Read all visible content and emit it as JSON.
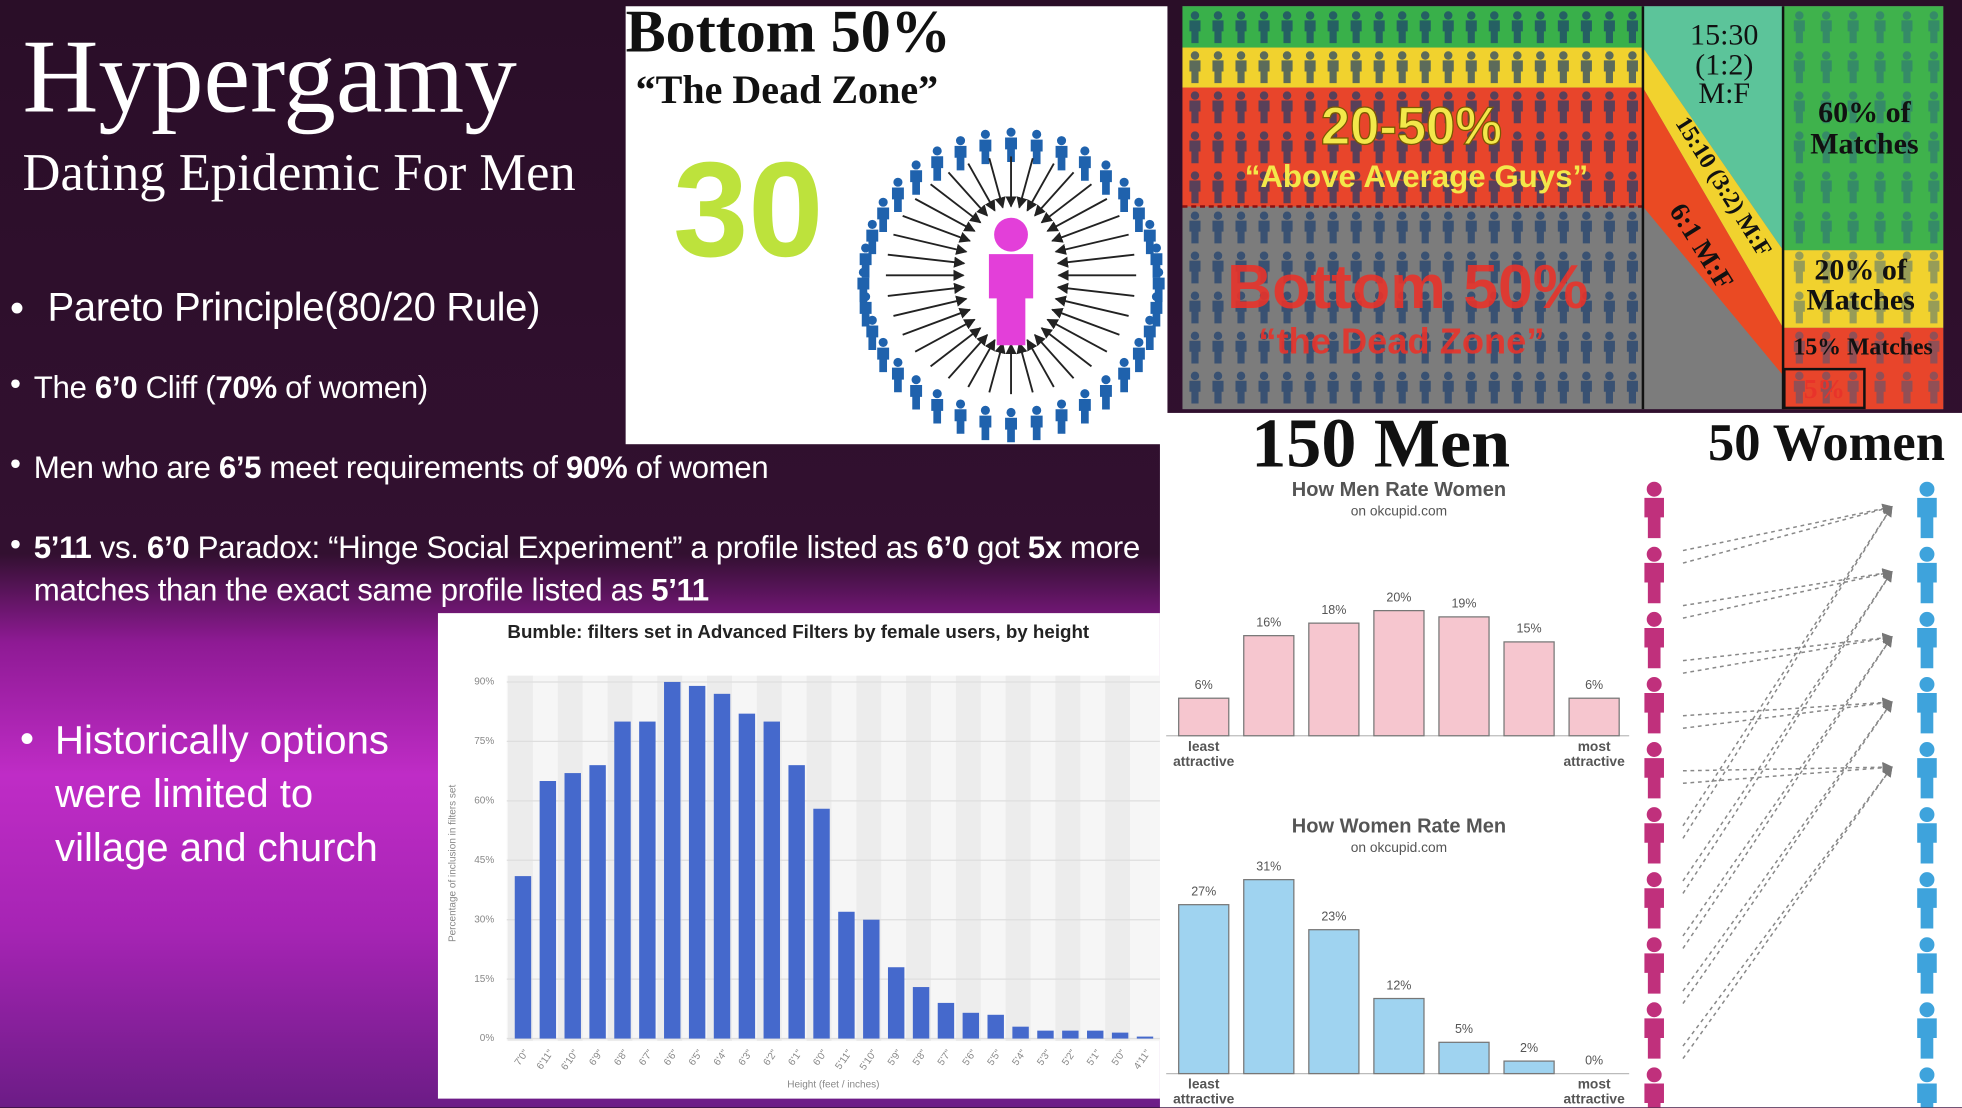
{
  "slide": {
    "title": "Hypergamy",
    "subtitle": "Dating Epidemic For Men",
    "bullets": [
      {
        "parts": [
          "Pareto Principle(80/20 Rule)"
        ]
      },
      {
        "parts": [
          "The ",
          "6’0",
          " Cliff (",
          "70%",
          " of women)"
        ]
      },
      {
        "parts": [
          "Men who are ",
          "6’5",
          " meet requirements of ",
          "90%",
          " of women"
        ]
      },
      {
        "parts": [
          "5’11",
          " vs. ",
          "6’0",
          " Paradox: “Hinge Social Experiment” a profile listed as ",
          "6’0",
          " got ",
          "5x",
          " more matches than the exact same profile listed as ",
          "5’11"
        ]
      }
    ],
    "side_note": "Historically options were limited to village and church"
  },
  "dead_zone_image": {
    "title": "Bottom 50%",
    "subtitle": "“The Dead Zone”",
    "number": "30"
  },
  "pyramid_image": {
    "band_title": "20-50%",
    "band_subtitle": "“Above Average Guys”",
    "bottom_title": "Bottom 50%",
    "bottom_subtitle": "“the Dead Zone”",
    "ratio_lines": [
      "15:30",
      "(1:2)",
      "M:F"
    ],
    "diagonal_labels": [
      "15:10 (3:2) M:F",
      "6:1 M:F"
    ],
    "top_matches": [
      "60% of",
      "Matches"
    ],
    "mid_matches": [
      "20% of",
      "Matches"
    ],
    "low_matches": "15% Matches",
    "bottom_matches": "5%"
  },
  "arrows_image": {
    "left_label": "150 Men",
    "right_label": "50 Women"
  },
  "chart_data": [
    {
      "type": "bar",
      "title": "Bumble: filters set in Advanced Filters by female users, by height",
      "categories": [
        "7'0\"",
        "6'11\"",
        "6'10\"",
        "6'9\"",
        "6'8\"",
        "6'7\"",
        "6'6\"",
        "6'5\"",
        "6'4\"",
        "6'3\"",
        "6'2\"",
        "6'1\"",
        "6'0\"",
        "5'11\"",
        "5'10\"",
        "5'9\"",
        "5'8\"",
        "5'7\"",
        "5'6\"",
        "5'5\"",
        "5'4\"",
        "5'3\"",
        "5'2\"",
        "5'1\"",
        "5'0\"",
        "4'11\""
      ],
      "values": [
        41,
        65,
        67,
        69,
        80,
        80,
        90,
        89,
        87,
        82,
        80,
        69,
        58,
        32,
        30,
        18,
        13,
        9,
        6.5,
        6,
        3,
        2,
        2,
        2,
        1.5,
        0.5
      ],
      "color": "#4569cc",
      "ylim": [
        0,
        90
      ],
      "yticks": [
        {
          "value": 0,
          "label": "0%"
        },
        {
          "value": 15,
          "label": "15%"
        },
        {
          "value": 30,
          "label": "30%"
        },
        {
          "value": 45,
          "label": "45%"
        },
        {
          "value": 60,
          "label": "60%"
        },
        {
          "value": 75,
          "label": "75%"
        },
        {
          "value": 90,
          "label": "90%"
        }
      ],
      "grid": true,
      "ylabel": "Percentage of inclusion in filters set",
      "xlabel": "Height (feet / inches)"
    },
    {
      "type": "bar",
      "title": "How Men Rate Women",
      "subtitle": "on okcupid.com",
      "categories": [
        "least attractive",
        null,
        null,
        null,
        null,
        null,
        "most attractive"
      ],
      "values": [
        6,
        16,
        18,
        20,
        19,
        15,
        6
      ],
      "value_labels": [
        "6%",
        "16%",
        "18%",
        "20%",
        "19%",
        "15%",
        "6%"
      ],
      "color": "#f6c6cf",
      "ylim": [
        0,
        32
      ]
    },
    {
      "type": "bar",
      "title": "How Women Rate Men",
      "subtitle": "on okcupid.com",
      "categories": [
        "least attractive",
        null,
        null,
        null,
        null,
        null,
        "most attractive"
      ],
      "values": [
        27,
        31,
        23,
        12,
        5,
        2,
        0
      ],
      "value_labels": [
        "27%",
        "31%",
        "23%",
        "12%",
        "5%",
        "2%",
        "0%"
      ],
      "color": "#9fd3f0",
      "ylim": [
        0,
        32
      ]
    }
  ]
}
